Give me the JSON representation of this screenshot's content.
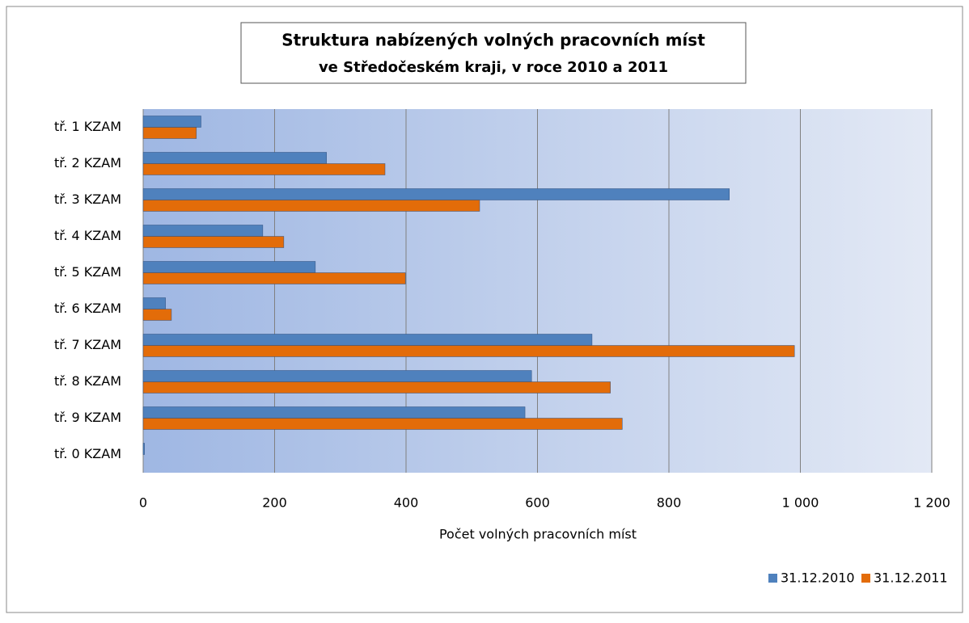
{
  "chart_data": {
    "type": "bar",
    "orientation": "horizontal",
    "title": "Struktura nabízených volných pracovních míst",
    "subtitle": "ve Středočeském kraji, v roce 2010 a 2011",
    "x_label": "Počet volných pracovních míst",
    "categories": [
      "tř. 1 KZAM",
      "tř. 2 KZAM",
      "tř. 3 KZAM",
      "tř. 4 KZAM",
      "tř. 5 KZAM",
      "tř. 6 KZAM",
      "tř. 7 KZAM",
      "tř. 8 KZAM",
      "tř. 9 KZAM",
      "tř. 0 KZAM"
    ],
    "series": [
      {
        "name": "31.12.2010",
        "color": "#4f81bd",
        "values": [
          88,
          279,
          892,
          182,
          262,
          34,
          683,
          591,
          581,
          2
        ]
      },
      {
        "name": "31.12.2011",
        "color": "#e36c09",
        "values": [
          81,
          368,
          512,
          214,
          399,
          43,
          991,
          711,
          729,
          0
        ]
      }
    ],
    "xlim": [
      0,
      1200
    ],
    "xticks": [
      0,
      200,
      400,
      600,
      800,
      {
        "value": 1000,
        "label": "1 000"
      },
      {
        "value": 1200,
        "label": "1 200"
      }
    ],
    "grid": true,
    "legend": "bottom-right"
  }
}
